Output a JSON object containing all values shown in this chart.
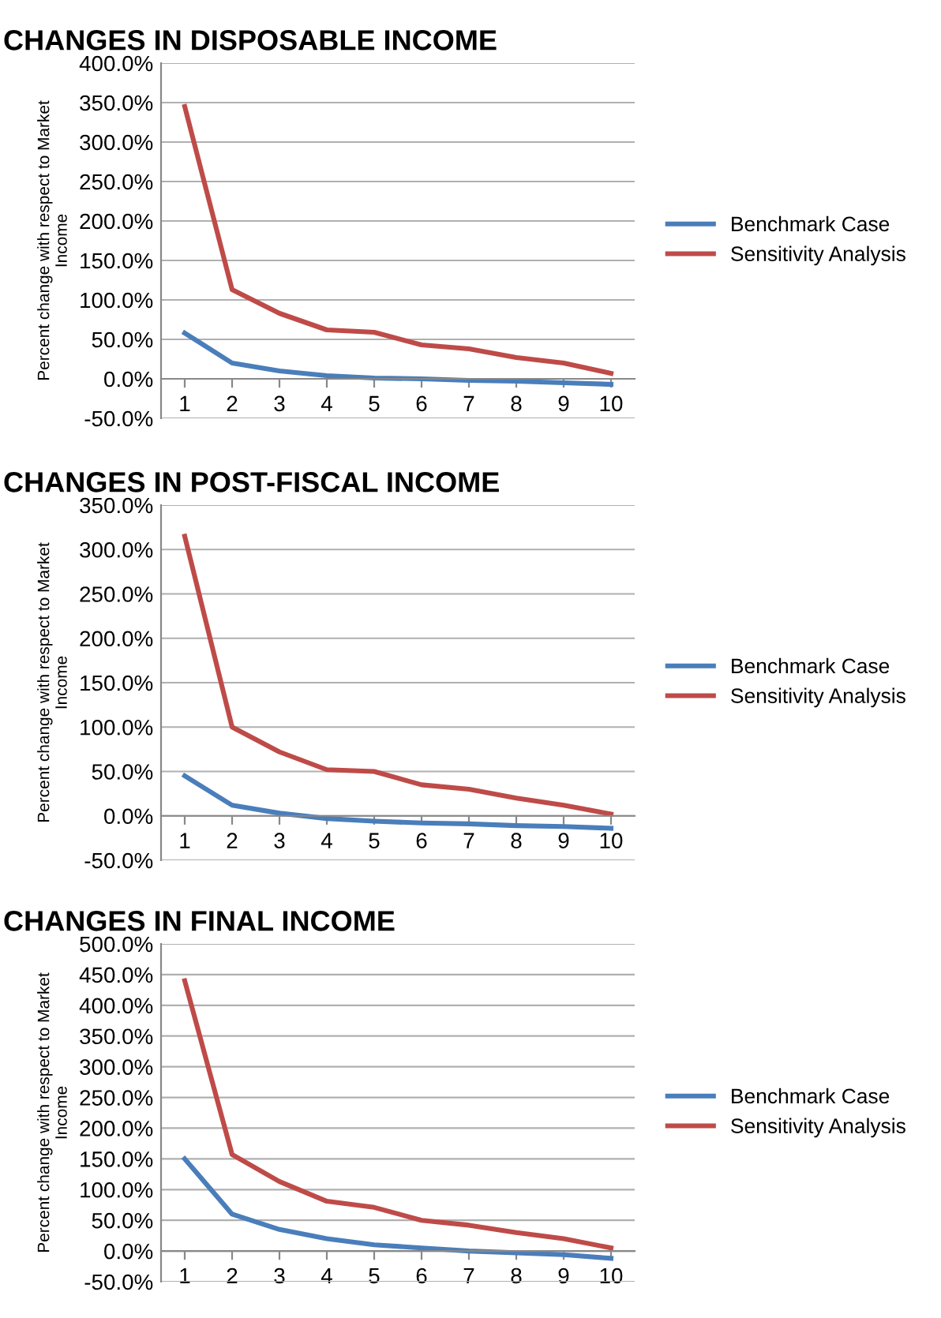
{
  "chart_data": [
    {
      "type": "line",
      "title": "CHANGES IN DISPOSABLE INCOME",
      "ylabel": "Percent change with respect to Market\nIncome",
      "categories": [
        "1",
        "2",
        "3",
        "4",
        "5",
        "6",
        "7",
        "8",
        "9",
        "10"
      ],
      "series": [
        {
          "name": "Benchmark Case",
          "color": "#4a7ebb",
          "values": [
            58,
            20,
            10,
            4,
            1,
            0,
            -2,
            -3,
            -5,
            -7
          ]
        },
        {
          "name": "Sensitivity Analysis",
          "color": "#be4b48",
          "values": [
            345,
            113,
            83,
            62,
            59,
            43,
            38,
            27,
            20,
            7
          ]
        }
      ],
      "ylim": [
        -50,
        400
      ],
      "yticks": [
        {
          "value": -50,
          "label": "-50.0%"
        },
        {
          "value": 0,
          "label": "0.0%"
        },
        {
          "value": 50,
          "label": "50.0%"
        },
        {
          "value": 100,
          "label": "100.0%"
        },
        {
          "value": 150,
          "label": "150.0%"
        },
        {
          "value": 200,
          "label": "200.0%"
        },
        {
          "value": 250,
          "label": "250.0%"
        },
        {
          "value": 300,
          "label": "300.0%"
        },
        {
          "value": 350,
          "label": "350.0%"
        },
        {
          "value": 400,
          "label": "400.0%"
        }
      ],
      "grid": "y",
      "legend": "right",
      "marker": "none",
      "line_style": "solid"
    },
    {
      "type": "line",
      "title": "CHANGES IN POST-FISCAL INCOME",
      "ylabel": "Percent change with respect to Market\nIncome",
      "categories": [
        "1",
        "2",
        "3",
        "4",
        "5",
        "6",
        "7",
        "8",
        "9",
        "10"
      ],
      "series": [
        {
          "name": "Benchmark Case",
          "color": "#4a7ebb",
          "values": [
            45,
            12,
            3,
            -3,
            -6,
            -8,
            -9,
            -11,
            -12,
            -14
          ]
        },
        {
          "name": "Sensitivity Analysis",
          "color": "#be4b48",
          "values": [
            315,
            100,
            72,
            52,
            50,
            35,
            30,
            20,
            12,
            2
          ]
        }
      ],
      "ylim": [
        -50,
        350
      ],
      "yticks": [
        {
          "value": -50,
          "label": "-50.0%"
        },
        {
          "value": 0,
          "label": "0.0%"
        },
        {
          "value": 50,
          "label": "50.0%"
        },
        {
          "value": 100,
          "label": "100.0%"
        },
        {
          "value": 150,
          "label": "150.0%"
        },
        {
          "value": 200,
          "label": "200.0%"
        },
        {
          "value": 250,
          "label": "250.0%"
        },
        {
          "value": 300,
          "label": "300.0%"
        },
        {
          "value": 350,
          "label": "350.0%"
        }
      ],
      "grid": "y",
      "legend": "right",
      "marker": "none",
      "line_style": "solid"
    },
    {
      "type": "line",
      "title": "CHANGES IN FINAL INCOME",
      "ylabel": "Percent change with respect to Market\nIncome",
      "categories": [
        "1",
        "2",
        "3",
        "4",
        "5",
        "6",
        "7",
        "8",
        "9",
        "10"
      ],
      "series": [
        {
          "name": "Benchmark Case",
          "color": "#4a7ebb",
          "values": [
            150,
            60,
            35,
            20,
            10,
            5,
            0,
            -3,
            -6,
            -12
          ]
        },
        {
          "name": "Sensitivity Analysis",
          "color": "#be4b48",
          "values": [
            440,
            157,
            113,
            81,
            71,
            50,
            42,
            30,
            20,
            5
          ]
        }
      ],
      "ylim": [
        -50,
        500
      ],
      "yticks": [
        {
          "value": -50,
          "label": "-50.0%"
        },
        {
          "value": 0,
          "label": "0.0%"
        },
        {
          "value": 50,
          "label": "50.0%"
        },
        {
          "value": 100,
          "label": "100.0%"
        },
        {
          "value": 150,
          "label": "150.0%"
        },
        {
          "value": 200,
          "label": "200.0%"
        },
        {
          "value": 250,
          "label": "250.0%"
        },
        {
          "value": 300,
          "label": "300.0%"
        },
        {
          "value": 350,
          "label": "350.0%"
        },
        {
          "value": 400,
          "label": "400.0%"
        },
        {
          "value": 450,
          "label": "450.0%"
        },
        {
          "value": 500,
          "label": "500.0%"
        }
      ],
      "grid": "y",
      "legend": "right",
      "marker": "none",
      "line_style": "solid"
    }
  ]
}
